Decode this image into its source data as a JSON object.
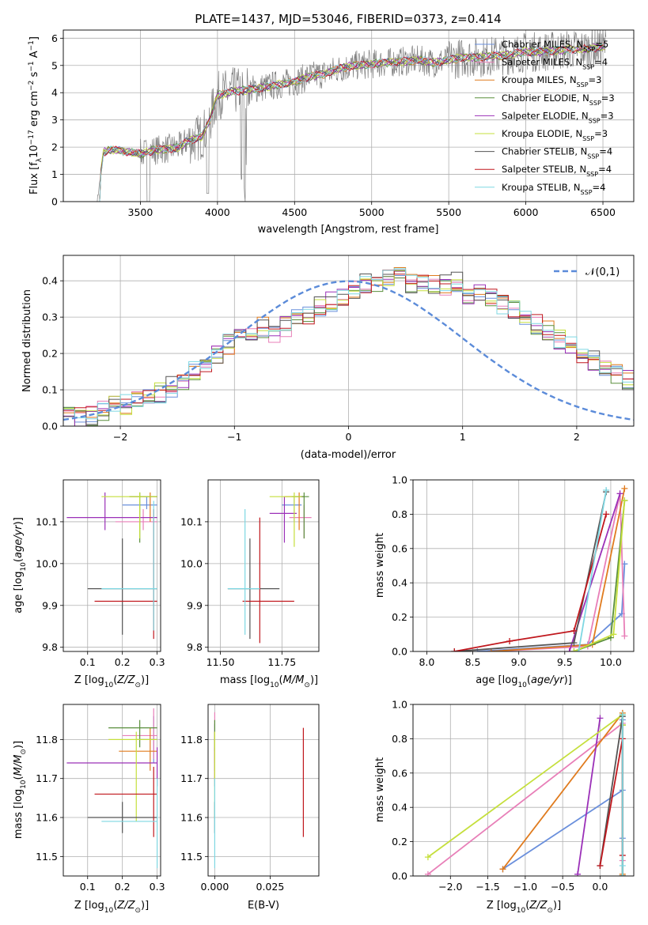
{
  "figure": {
    "title": "PLATE=1437, MJD=53046, FIBERID=0373, z=0.414"
  },
  "colors": {
    "Chabrier MILES": "#6a8fdc",
    "Salpeter MILES": "#e87fb8",
    "Kroupa MILES": "#e07b1e",
    "Chabrier ELODIE": "#5a8f3c",
    "Salpeter ELODIE": "#9b30b8",
    "Kroupa ELODIE": "#c5df3c",
    "Chabrier STELIB": "#555555",
    "Salpeter STELIB": "#c0171d",
    "Kroupa STELIB": "#7ed7e2",
    "data": "#808080",
    "normal": "#5b8bd9"
  },
  "chart_data": [
    {
      "type": "line",
      "panel": "spectrum",
      "title": "PLATE=1437, MJD=53046, FIBERID=0373, z=0.414",
      "xlabel": "wavelength [Angstrom, rest frame]",
      "ylabel": "Flux [f",
      "xlim": [
        3000,
        6700
      ],
      "ylim": [
        0,
        6.3
      ],
      "xticks": [
        "3500",
        "4000",
        "4500",
        "5000",
        "5500",
        "6000",
        "6500"
      ],
      "yticks": [
        "0",
        "1",
        "2",
        "3",
        "4",
        "5",
        "6"
      ],
      "legend_position": "top-right",
      "model_continuum": {
        "x": [
          3220,
          3260,
          3300,
          3400,
          3500,
          3600,
          3700,
          3750,
          3800,
          3900,
          3950,
          4000,
          4100,
          4200,
          4300,
          4400,
          4500,
          4600,
          4700,
          4800,
          4900,
          5000,
          5100,
          5200,
          5300,
          5400,
          5500,
          5600,
          5700,
          5800,
          5900,
          6000,
          6100,
          6200,
          6300,
          6400,
          6500
        ],
        "y": [
          0,
          1.8,
          1.9,
          1.85,
          1.75,
          1.9,
          1.95,
          2.0,
          2.2,
          2.4,
          3.0,
          3.9,
          4.05,
          4.1,
          4.2,
          4.3,
          4.4,
          4.6,
          4.7,
          4.9,
          5.0,
          5.05,
          5.1,
          5.15,
          5.2,
          5.1,
          5.2,
          5.3,
          5.3,
          5.35,
          5.4,
          5.5,
          5.5,
          5.55,
          5.6,
          5.6,
          5.7
        ]
      },
      "series": [
        {
          "name": "Chabrier MILES",
          "nssp": "5"
        },
        {
          "name": "Salpeter MILES",
          "nssp": "4"
        },
        {
          "name": "Kroupa MILES",
          "nssp": "3"
        },
        {
          "name": "Chabrier ELODIE",
          "nssp": "3"
        },
        {
          "name": "Salpeter ELODIE",
          "nssp": "3"
        },
        {
          "name": "Kroupa ELODIE",
          "nssp": "3"
        },
        {
          "name": "Chabrier STELIB",
          "nssp": "4"
        },
        {
          "name": "Salpeter STELIB",
          "nssp": "4"
        },
        {
          "name": "Kroupa STELIB",
          "nssp": "4"
        }
      ]
    },
    {
      "type": "line",
      "panel": "residual histogram",
      "xlabel": "(data-model)/error",
      "ylabel": "Normed distribution",
      "xlim": [
        -2.5,
        2.5
      ],
      "ylim": [
        0,
        0.47
      ],
      "xticks": [
        "-2",
        "-1",
        "0",
        "1",
        "2"
      ],
      "yticks": [
        "0.0",
        "0.1",
        "0.2",
        "0.3",
        "0.4"
      ],
      "legend_position": "top-right",
      "reference_curve": {
        "name": "𝒩(0,1)",
        "style": "dashed",
        "mean": 0,
        "sigma": 1
      },
      "bin_width": 0.1,
      "bin_start": -2.5,
      "histogram_base": [
        0.025,
        0.025,
        0.03,
        0.04,
        0.055,
        0.06,
        0.065,
        0.075,
        0.09,
        0.11,
        0.13,
        0.15,
        0.175,
        0.2,
        0.225,
        0.245,
        0.26,
        0.27,
        0.26,
        0.275,
        0.3,
        0.31,
        0.33,
        0.34,
        0.36,
        0.38,
        0.39,
        0.385,
        0.4,
        0.41,
        0.395,
        0.4,
        0.385,
        0.39,
        0.4,
        0.35,
        0.36,
        0.35,
        0.335,
        0.32,
        0.3,
        0.28,
        0.26,
        0.24,
        0.22,
        0.2,
        0.18,
        0.16,
        0.14,
        0.125,
        0.11,
        0.1,
        0.09,
        0.08,
        0.07,
        0.06,
        0.05,
        0.045,
        0.04,
        0.035,
        0.03
      ]
    },
    {
      "type": "scatter",
      "panel": "age vs Z",
      "xlabel": "Z [log",
      "ylabel": "age  [log",
      "xlim": [
        0.03,
        0.31
      ],
      "ylim": [
        9.79,
        10.2
      ],
      "xticks": [
        "0.1",
        "0.2",
        "0.3"
      ],
      "yticks": [
        "9.8",
        "9.9",
        "10.0",
        "10.1"
      ],
      "points": [
        {
          "series": "Chabrier MILES",
          "x": 0.27,
          "xlo": 0.2,
          "xhi": 0.3,
          "y": 10.14,
          "ylo": 10.13,
          "yhi": 10.16
        },
        {
          "series": "Salpeter MILES",
          "x": 0.26,
          "xlo": 0.18,
          "xhi": 0.3,
          "y": 10.1,
          "ylo": 10.08,
          "yhi": 10.13
        },
        {
          "series": "Kroupa MILES",
          "x": 0.28,
          "xlo": 0.22,
          "xhi": 0.3,
          "y": 10.16,
          "ylo": 10.1,
          "yhi": 10.17
        },
        {
          "series": "Chabrier ELODIE",
          "x": 0.25,
          "xlo": 0.22,
          "xhi": 0.3,
          "y": 10.16,
          "ylo": 10.05,
          "yhi": 10.17
        },
        {
          "series": "Salpeter ELODIE",
          "x": 0.15,
          "xlo": 0.04,
          "xhi": 0.3,
          "y": 10.11,
          "ylo": 10.08,
          "yhi": 10.17
        },
        {
          "series": "Kroupa ELODIE",
          "x": 0.25,
          "xlo": 0.14,
          "xhi": 0.3,
          "y": 10.16,
          "ylo": 10.06,
          "yhi": 10.17
        },
        {
          "series": "Chabrier STELIB",
          "x": 0.2,
          "xlo": 0.1,
          "xhi": 0.3,
          "y": 9.94,
          "ylo": 9.83,
          "yhi": 10.06
        },
        {
          "series": "Salpeter STELIB",
          "x": 0.29,
          "xlo": 0.12,
          "xhi": 0.3,
          "y": 9.91,
          "ylo": 9.82,
          "yhi": 10.13
        },
        {
          "series": "Kroupa STELIB",
          "x": 0.29,
          "xlo": 0.14,
          "xhi": 0.3,
          "y": 9.94,
          "ylo": 9.84,
          "yhi": 10.15
        }
      ]
    },
    {
      "type": "scatter",
      "panel": "age vs mass",
      "xlabel": "mass [log",
      "ylabel": "",
      "xlim": [
        11.45,
        11.9
      ],
      "ylim": [
        9.79,
        10.2
      ],
      "xticks": [
        "11.50",
        "11.75"
      ],
      "yticks": [
        "9.8",
        "9.9",
        "10.0",
        "10.1"
      ],
      "points": [
        {
          "series": "Chabrier MILES",
          "x": 11.8,
          "xlo": 11.75,
          "xhi": 11.83,
          "y": 10.14,
          "ylo": 10.1,
          "yhi": 10.16
        },
        {
          "series": "Salpeter MILES",
          "x": 11.84,
          "xlo": 11.78,
          "xhi": 11.87,
          "y": 10.11,
          "ylo": 10.06,
          "yhi": 10.14
        },
        {
          "series": "Kroupa MILES",
          "x": 11.82,
          "xlo": 11.76,
          "xhi": 11.84,
          "y": 10.16,
          "ylo": 10.08,
          "yhi": 10.17
        },
        {
          "series": "Chabrier ELODIE",
          "x": 11.84,
          "xlo": 11.79,
          "xhi": 11.86,
          "y": 10.16,
          "ylo": 10.06,
          "yhi": 10.17
        },
        {
          "series": "Salpeter ELODIE",
          "x": 11.76,
          "xlo": 11.7,
          "xhi": 11.81,
          "y": 10.12,
          "ylo": 10.05,
          "yhi": 10.16
        },
        {
          "series": "Kroupa ELODIE",
          "x": 11.8,
          "xlo": 11.7,
          "xhi": 11.83,
          "y": 10.16,
          "ylo": 10.04,
          "yhi": 10.17
        },
        {
          "series": "Chabrier STELIB",
          "x": 11.62,
          "xlo": 11.53,
          "xhi": 11.74,
          "y": 9.94,
          "ylo": 9.82,
          "yhi": 10.06
        },
        {
          "series": "Salpeter STELIB",
          "x": 11.66,
          "xlo": 11.59,
          "xhi": 11.8,
          "y": 9.91,
          "ylo": 9.81,
          "yhi": 10.11
        },
        {
          "series": "Kroupa STELIB",
          "x": 11.6,
          "xlo": 11.53,
          "xhi": 11.66,
          "y": 9.94,
          "ylo": 9.83,
          "yhi": 10.13
        }
      ]
    },
    {
      "type": "line",
      "panel": "mass weight vs age",
      "xlabel": "age  [log",
      "ylabel": "mass weight",
      "xlim": [
        7.85,
        10.25
      ],
      "ylim": [
        0,
        1.0
      ],
      "xticks": [
        "8.0",
        "8.5",
        "9.0",
        "9.5",
        "10.0"
      ],
      "yticks": [
        "0.0",
        "0.2",
        "0.4",
        "0.6",
        "0.8",
        "1.0"
      ],
      "series": [
        {
          "name": "Chabrier MILES",
          "x": [
            8.55,
            9.75,
            10.12,
            10.15
          ],
          "y": [
            0.0,
            0.04,
            0.22,
            0.51
          ]
        },
        {
          "name": "Salpeter MILES",
          "x": [
            8.7,
            9.75,
            10.1,
            10.15
          ],
          "y": [
            0.0,
            0.03,
            0.92,
            0.09
          ]
        },
        {
          "name": "Kroupa MILES",
          "x": [
            8.7,
            9.8,
            10.15
          ],
          "y": [
            0.0,
            0.04,
            0.95
          ]
        },
        {
          "name": "Chabrier ELODIE",
          "x": [
            9.6,
            10.0,
            10.15
          ],
          "y": [
            0.0,
            0.08,
            0.88
          ]
        },
        {
          "name": "Salpeter ELODIE",
          "x": [
            9.55,
            10.1
          ],
          "y": [
            0.0,
            0.92
          ]
        },
        {
          "name": "Kroupa ELODIE",
          "x": [
            9.6,
            10.03,
            10.15
          ],
          "y": [
            0.0,
            0.1,
            0.88
          ]
        },
        {
          "name": "Chabrier STELIB",
          "x": [
            8.3,
            9.6,
            9.95
          ],
          "y": [
            0.0,
            0.05,
            0.93
          ]
        },
        {
          "name": "Salpeter STELIB",
          "x": [
            8.3,
            8.9,
            9.6,
            9.95
          ],
          "y": [
            0.0,
            0.06,
            0.12,
            0.8
          ]
        },
        {
          "name": "Kroupa STELIB",
          "x": [
            9.65,
            9.95
          ],
          "y": [
            0.0,
            0.94
          ]
        }
      ]
    },
    {
      "type": "scatter",
      "panel": "mass vs Z",
      "xlabel": "Z [log",
      "ylabel": "mass [log",
      "xlim": [
        0.03,
        0.31
      ],
      "ylim": [
        11.45,
        11.89
      ],
      "xticks": [
        "0.1",
        "0.2",
        "0.3"
      ],
      "yticks": [
        "11.5",
        "11.6",
        "11.7",
        "11.8"
      ],
      "points": [
        {
          "series": "Chabrier MILES",
          "x": 0.29,
          "xlo": 0.24,
          "xhi": 0.3,
          "y": 11.8,
          "ylo": 11.74,
          "yhi": 11.86
        },
        {
          "series": "Salpeter MILES",
          "x": 0.29,
          "xlo": 0.2,
          "xhi": 0.3,
          "y": 11.81,
          "ylo": 11.75,
          "yhi": 11.88
        },
        {
          "series": "Kroupa MILES",
          "x": 0.28,
          "xlo": 0.19,
          "xhi": 0.3,
          "y": 11.77,
          "ylo": 11.72,
          "yhi": 11.83
        },
        {
          "series": "Chabrier ELODIE",
          "x": 0.25,
          "xlo": 0.16,
          "xhi": 0.3,
          "y": 11.83,
          "ylo": 11.78,
          "yhi": 11.85
        },
        {
          "series": "Salpeter ELODIE",
          "x": 0.3,
          "xlo": 0.04,
          "xhi": 0.3,
          "y": 11.74,
          "ylo": 11.68,
          "yhi": 11.78
        },
        {
          "series": "Kroupa ELODIE",
          "x": 0.24,
          "xlo": 0.16,
          "xhi": 0.3,
          "y": 11.8,
          "ylo": 11.59,
          "yhi": 11.82
        },
        {
          "series": "Chabrier STELIB",
          "x": 0.2,
          "xlo": 0.1,
          "xhi": 0.3,
          "y": 11.6,
          "ylo": 11.56,
          "yhi": 11.64
        },
        {
          "series": "Salpeter STELIB",
          "x": 0.29,
          "xlo": 0.12,
          "xhi": 0.3,
          "y": 11.66,
          "ylo": 11.55,
          "yhi": 11.73
        },
        {
          "series": "Kroupa STELIB",
          "x": 0.3,
          "xlo": 0.14,
          "xhi": 0.3,
          "y": 11.59,
          "ylo": 11.47,
          "yhi": 11.7
        }
      ]
    },
    {
      "type": "scatter",
      "panel": "mass vs E(B-V)",
      "xlabel": "E(B-V)",
      "ylabel": "",
      "xlim": [
        -0.003,
        0.047
      ],
      "ylim": [
        11.45,
        11.89
      ],
      "xticks": [
        "0.000",
        "0.025"
      ],
      "yticks": [
        "11.5",
        "11.6",
        "11.7",
        "11.8"
      ],
      "points": [
        {
          "series": "Chabrier MILES",
          "x": 0.0,
          "y": 11.78,
          "ylo": 11.72,
          "yhi": 11.84
        },
        {
          "series": "Salpeter MILES",
          "x": 0.0,
          "y": 11.8,
          "ylo": 11.74,
          "yhi": 11.87
        },
        {
          "series": "Kroupa MILES",
          "x": 0.0,
          "y": 11.77,
          "ylo": 11.7,
          "yhi": 11.82
        },
        {
          "series": "Chabrier ELODIE",
          "x": 0.0,
          "y": 11.82,
          "ylo": 11.77,
          "yhi": 11.85
        },
        {
          "series": "Salpeter ELODIE",
          "x": 0.0,
          "y": 11.74,
          "ylo": 11.68,
          "yhi": 11.78
        },
        {
          "series": "Kroupa ELODIE",
          "x": 0.0,
          "y": 11.76,
          "ylo": 11.6,
          "yhi": 11.82
        },
        {
          "series": "Chabrier STELIB",
          "x": 0.0,
          "y": 11.6,
          "ylo": 11.56,
          "yhi": 11.64
        },
        {
          "series": "Salpeter STELIB",
          "x": 0.04,
          "y": 11.69,
          "ylo": 11.55,
          "yhi": 11.83
        },
        {
          "series": "Kroupa STELIB",
          "x": 0.0,
          "y": 11.59,
          "ylo": 11.47,
          "yhi": 11.7
        }
      ]
    },
    {
      "type": "line",
      "panel": "mass weight vs Z",
      "xlabel": "Z [log",
      "ylabel": "mass weight",
      "xlim": [
        -2.5,
        0.45
      ],
      "ylim": [
        0,
        1.0
      ],
      "xticks": [
        "-2.0",
        "-1.5",
        "-1.0",
        "-0.5",
        "0.0"
      ],
      "yticks": [
        "0.0",
        "0.2",
        "0.4",
        "0.6",
        "0.8",
        "1.0"
      ],
      "series": [
        {
          "name": "Chabrier MILES",
          "x": [
            -1.3,
            0.3,
            0.3,
            0.3,
            0.3
          ],
          "y": [
            0.04,
            0.5,
            0.22,
            0.91,
            0.0
          ]
        },
        {
          "name": "Salpeter MILES",
          "x": [
            -2.3,
            0.3,
            0.3,
            0.3
          ],
          "y": [
            0.01,
            0.89,
            0.09,
            0.0
          ]
        },
        {
          "name": "Kroupa MILES",
          "x": [
            -1.3,
            0.3,
            0.3,
            0.3
          ],
          "y": [
            0.04,
            0.95,
            0.01,
            0.0
          ]
        },
        {
          "name": "Chabrier ELODIE",
          "x": [
            0.3,
            0.3
          ],
          "y": [
            0.0,
            0.88
          ]
        },
        {
          "name": "Salpeter ELODIE",
          "x": [
            -0.3,
            0.0
          ],
          "y": [
            0.01,
            0.92
          ]
        },
        {
          "name": "Kroupa ELODIE",
          "x": [
            -2.3,
            0.3,
            0.3
          ],
          "y": [
            0.11,
            0.94,
            0.88
          ]
        },
        {
          "name": "Chabrier STELIB",
          "x": [
            0.0,
            0.3,
            0.3
          ],
          "y": [
            0.06,
            0.93,
            0.0
          ]
        },
        {
          "name": "Salpeter STELIB",
          "x": [
            0.0,
            0.3,
            0.3
          ],
          "y": [
            0.06,
            0.8,
            0.12
          ]
        },
        {
          "name": "Kroupa STELIB",
          "x": [
            0.3,
            0.3,
            0.3
          ],
          "y": [
            0.0,
            0.94,
            0.06
          ]
        }
      ]
    }
  ]
}
